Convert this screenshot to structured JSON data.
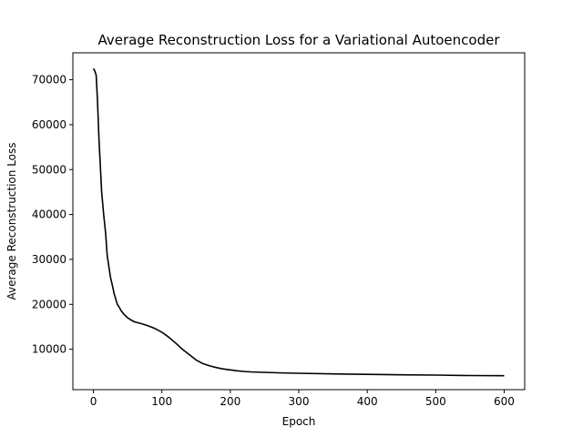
{
  "chart_data": {
    "type": "line",
    "title": "Average Reconstruction Loss for a Variational Autoencoder",
    "xlabel": "Epoch",
    "ylabel": "Average Reconstruction Loss",
    "xlim": [
      -30,
      630
    ],
    "ylim": [
      1000,
      76000
    ],
    "xticks": [
      0,
      100,
      200,
      300,
      400,
      500,
      600
    ],
    "xtick_labels": [
      "0",
      "100",
      "200",
      "300",
      "400",
      "500",
      "600"
    ],
    "yticks": [
      10000,
      20000,
      30000,
      40000,
      50000,
      60000,
      70000
    ],
    "ytick_labels": [
      "10000",
      "20000",
      "30000",
      "40000",
      "50000",
      "60000",
      "70000"
    ],
    "grid": false,
    "series": [
      {
        "color": "#000000",
        "x": [
          0,
          2,
          4,
          6,
          8,
          10,
          12,
          15,
          18,
          20,
          23,
          25,
          28,
          30,
          33,
          35,
          38,
          40,
          45,
          50,
          55,
          60,
          70,
          80,
          90,
          100,
          110,
          120,
          130,
          140,
          150,
          160,
          170,
          180,
          190,
          200,
          210,
          220,
          230,
          250,
          270,
          300,
          350,
          400,
          450,
          500,
          550,
          600
        ],
        "y": [
          72500,
          72000,
          71000,
          65000,
          57000,
          51000,
          45000,
          40000,
          35500,
          31000,
          28000,
          26000,
          24000,
          22500,
          21000,
          20000,
          19300,
          18700,
          17700,
          17000,
          16500,
          16100,
          15700,
          15200,
          14600,
          13800,
          12700,
          11400,
          10000,
          8800,
          7600,
          6800,
          6300,
          5900,
          5600,
          5400,
          5200,
          5050,
          4950,
          4850,
          4750,
          4650,
          4500,
          4400,
          4300,
          4250,
          4150,
          4100
        ]
      }
    ]
  }
}
